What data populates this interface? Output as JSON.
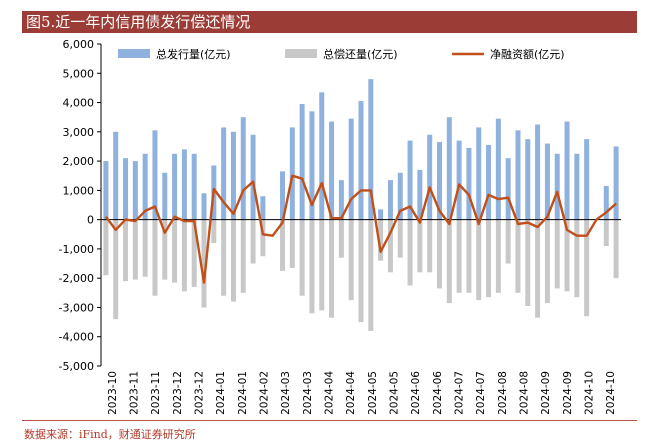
{
  "figure_title": "图5.近一年内信用债发行偿还情况",
  "source_note": "数据来源：iFind，财通证券研究所",
  "colors": {
    "issued": "#8fb1de",
    "repaid": "#c8c8c8",
    "net": "#c04f1a",
    "title_bg": "#9b3c36"
  },
  "chart_data": {
    "type": "bar",
    "title": "近一年内信用债发行偿还情况",
    "ylabel": "亿元",
    "ylim": [
      -5000,
      6000
    ],
    "yticks": [
      -5000,
      -4000,
      -3000,
      -2000,
      -1000,
      0,
      1000,
      2000,
      3000,
      4000,
      5000,
      6000
    ],
    "ytick_labels": [
      "-5,000",
      "-4,000",
      "-3,000",
      "-2,000",
      "-1,000",
      "0",
      "1,000",
      "2,000",
      "3,000",
      "4,000",
      "5,000",
      "6,000"
    ],
    "legend": [
      "总发行量(亿元)",
      "总偿还量(亿元)",
      "净融资额(亿元)"
    ],
    "x_tick_labels": [
      "2023-10",
      "2023-11",
      "2023-11",
      "2023-12",
      "2023-12",
      "2024-01",
      "2024-01",
      "2024-02",
      "2024-03",
      "2024-03",
      "2024-04",
      "2024-04",
      "2024-05",
      "2024-05",
      "2024-06",
      "2024-06",
      "2024-07",
      "2024-07",
      "2024-08",
      "2024-08",
      "2024-09",
      "2024-09",
      "2024-10",
      "2024-10"
    ],
    "series": [
      {
        "name": "总发行量(亿元)",
        "kind": "bar",
        "values": [
          2000,
          3000,
          2100,
          2000,
          2250,
          3050,
          1600,
          2250,
          2400,
          2250,
          900,
          1850,
          3150,
          3000,
          3500,
          2900,
          800,
          0,
          1650,
          3150,
          3950,
          3700,
          4350,
          3350,
          1350,
          3450,
          4050,
          4800,
          350,
          1350,
          1600,
          2700,
          1700,
          2900,
          2650,
          3500,
          2700,
          2450,
          3150,
          2550,
          3450,
          2100,
          3050,
          2750,
          3250,
          2600,
          2250,
          3350,
          2250,
          2750,
          0,
          1150,
          2500
        ]
      },
      {
        "name": "总偿还量(亿元)",
        "kind": "bar",
        "values": [
          -1900,
          -3400,
          -2100,
          -2050,
          -1950,
          -2600,
          -2050,
          -2150,
          -2450,
          -2300,
          -3000,
          -800,
          -2600,
          -2800,
          -2500,
          -1500,
          -1250,
          0,
          -1750,
          -1650,
          -2600,
          -3200,
          -3100,
          -3350,
          -1300,
          -2750,
          -3500,
          -3800,
          -1400,
          -1800,
          -1300,
          -2250,
          -1800,
          -1800,
          -2350,
          -2850,
          -2500,
          -2500,
          -2750,
          -2650,
          -2500,
          -1500,
          -2500,
          -2950,
          -3350,
          -2850,
          -2350,
          -2450,
          -2650,
          -3300,
          0,
          -900,
          -2000
        ]
      },
      {
        "name": "净融资额(亿元)",
        "kind": "line",
        "values": [
          100,
          -350,
          0,
          -50,
          300,
          450,
          -450,
          100,
          -50,
          -50,
          -2150,
          1050,
          600,
          200,
          1000,
          1300,
          -500,
          -550,
          -100,
          1500,
          1400,
          500,
          1250,
          50,
          50,
          700,
          1000,
          1000,
          -1100,
          -450,
          300,
          450,
          -100,
          1100,
          300,
          -150,
          1200,
          850,
          -150,
          850,
          700,
          750,
          -150,
          -100,
          -250,
          100,
          950,
          -350,
          -550,
          -550,
          0,
          250,
          550
        ]
      }
    ]
  }
}
